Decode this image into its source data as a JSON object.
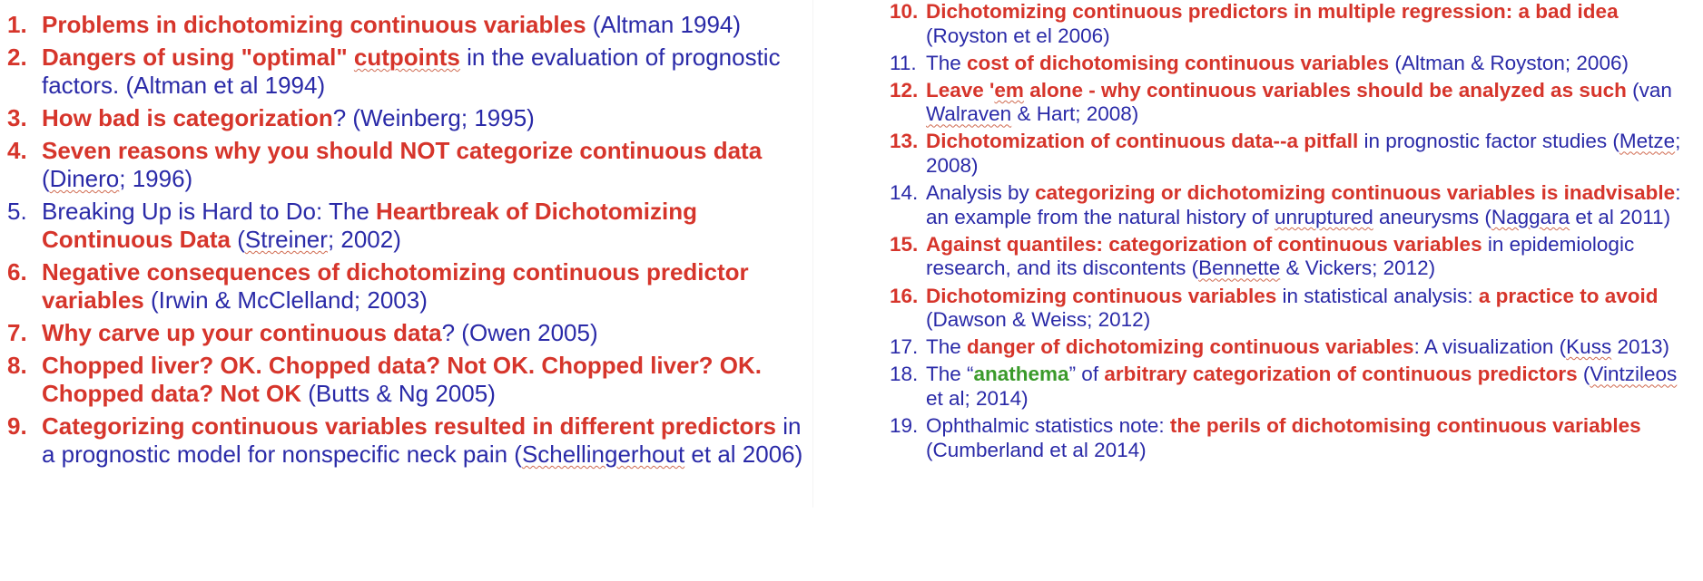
{
  "left": [
    {
      "num": "1.",
      "num_bold": true,
      "parts": [
        {
          "t": "Problems in dichotomizing continuous variables",
          "s": "b"
        },
        {
          "t": " (Altman 1994)",
          "s": "n"
        }
      ]
    },
    {
      "num": "2.",
      "num_bold": true,
      "parts": [
        {
          "t": "Dangers of using \"optimal\" ",
          "s": "b"
        },
        {
          "t": "cutpoints",
          "s": "b sp"
        },
        {
          "t": " in the evaluation of prognostic factors. (Altman et al 1994)",
          "s": "n"
        }
      ]
    },
    {
      "num": "3.",
      "num_bold": true,
      "parts": [
        {
          "t": "How bad is categorization",
          "s": "b"
        },
        {
          "t": "? (Weinberg; 1995)",
          "s": "n"
        }
      ]
    },
    {
      "num": "4.",
      "num_bold": true,
      "parts": [
        {
          "t": "Seven reasons why you should NOT categorize continuous data",
          "s": "b"
        },
        {
          "t": " (",
          "s": "n"
        },
        {
          "t": "Dinero",
          "s": "n sp"
        },
        {
          "t": "; 1996)",
          "s": "n"
        }
      ]
    },
    {
      "num": "5.",
      "num_bold": false,
      "parts": [
        {
          "t": "Breaking Up is Hard to Do: The ",
          "s": "n"
        },
        {
          "t": "Heartbreak of Dichotomizing Continuous Data",
          "s": "b"
        },
        {
          "t": " (",
          "s": "n"
        },
        {
          "t": "Streiner",
          "s": "n sp"
        },
        {
          "t": "; 2002)",
          "s": "n"
        }
      ]
    },
    {
      "num": "6.",
      "num_bold": true,
      "parts": [
        {
          "t": "Negative consequences of dichotomizing continuous predictor variables",
          "s": "b"
        },
        {
          "t": " (Irwin & McClelland; 2003)",
          "s": "n"
        }
      ]
    },
    {
      "num": "7.",
      "num_bold": true,
      "parts": [
        {
          "t": "Why carve up your continuous data",
          "s": "b"
        },
        {
          "t": "?  (Owen 2005)",
          "s": "n"
        }
      ]
    },
    {
      "num": "8.",
      "num_bold": true,
      "parts": [
        {
          "t": "Chopped liver? OK. Chopped data? Not OK. Chopped liver? OK. Chopped data? Not OK",
          "s": "b"
        },
        {
          "t": " (Butts & Ng 2005)",
          "s": "n"
        }
      ]
    },
    {
      "num": "9.",
      "num_bold": true,
      "parts": [
        {
          "t": "Categorizing continuous variables resulted in different predictors",
          "s": "b"
        },
        {
          "t": " in a prognostic model for nonspecific neck pain (",
          "s": "n"
        },
        {
          "t": "Schellingerhout",
          "s": "n sp"
        },
        {
          "t": " et al 2006)",
          "s": "n"
        }
      ]
    }
  ],
  "right": [
    {
      "num": "10.",
      "num_bold": true,
      "parts": [
        {
          "t": "Dichotomizing continuous predictors in multiple regression: a bad idea",
          "s": "b"
        },
        {
          "t": " (Royston et el 2006)",
          "s": "n"
        }
      ]
    },
    {
      "num": "11.",
      "num_bold": false,
      "parts": [
        {
          "t": "The ",
          "s": "n"
        },
        {
          "t": "cost of dichotomising continuous variables",
          "s": "b"
        },
        {
          "t": " (Altman & Royston; 2006)",
          "s": "n"
        }
      ]
    },
    {
      "num": "12.",
      "num_bold": true,
      "parts": [
        {
          "t": "Leave '",
          "s": "b"
        },
        {
          "t": "em",
          "s": "b sp"
        },
        {
          "t": " alone - why continuous variables should be analyzed as such",
          "s": "b"
        },
        {
          "t": " (van ",
          "s": "n"
        },
        {
          "t": "Walraven",
          "s": "n sp"
        },
        {
          "t": " & Hart; 2008)",
          "s": "n"
        }
      ]
    },
    {
      "num": "13.",
      "num_bold": true,
      "parts": [
        {
          "t": "Dichotomization of continuous data--a pitfall",
          "s": "b"
        },
        {
          "t": " in prognostic factor studies (",
          "s": "n"
        },
        {
          "t": "Metze",
          "s": "n sp"
        },
        {
          "t": "; 2008)",
          "s": "n"
        }
      ]
    },
    {
      "num": "14.",
      "num_bold": false,
      "parts": [
        {
          "t": "Analysis by ",
          "s": "n"
        },
        {
          "t": "categorizing or dichotomizing continuous variables is inadvisable",
          "s": "b"
        },
        {
          "t": ": an example from the natural history of ",
          "s": "n"
        },
        {
          "t": "unruptured",
          "s": "n sp"
        },
        {
          "t": " aneurysms (",
          "s": "n"
        },
        {
          "t": "Naggara",
          "s": "n sp"
        },
        {
          "t": " et al 2011)",
          "s": "n"
        }
      ]
    },
    {
      "num": "15.",
      "num_bold": true,
      "parts": [
        {
          "t": "Against quantiles: categorization of continuous variables",
          "s": "b"
        },
        {
          "t": " in epidemiologic research, and its discontents (",
          "s": "n"
        },
        {
          "t": "Bennette",
          "s": "n sp"
        },
        {
          "t": " & Vickers; 2012)",
          "s": "n"
        }
      ]
    },
    {
      "num": "16.",
      "num_bold": true,
      "parts": [
        {
          "t": "Dichotomizing continuous variables",
          "s": "b"
        },
        {
          "t": " in statistical analysis: ",
          "s": "n"
        },
        {
          "t": "a practice to avoid",
          "s": "b"
        },
        {
          "t": " (Dawson & Weiss; 2012)",
          "s": "n"
        }
      ]
    },
    {
      "num": "17.",
      "num_bold": false,
      "parts": [
        {
          "t": "The ",
          "s": "n"
        },
        {
          "t": "danger of dichotomizing continuous variables",
          "s": "b"
        },
        {
          "t": ": A visualization (",
          "s": "n"
        },
        {
          "t": "Kuss",
          "s": "n sp"
        },
        {
          "t": " 2013)",
          "s": "n"
        }
      ]
    },
    {
      "num": "18.",
      "num_bold": false,
      "parts": [
        {
          "t": "The “",
          "s": "n"
        },
        {
          "t": "anathema",
          "s": "g"
        },
        {
          "t": "” of ",
          "s": "n"
        },
        {
          "t": "arbitrary categorization of continuous predictors",
          "s": "b"
        },
        {
          "t": " (",
          "s": "n"
        },
        {
          "t": "Vintzileos",
          "s": "n sp"
        },
        {
          "t": " et al; 2014)",
          "s": "n"
        }
      ]
    },
    {
      "num": "19.",
      "num_bold": false,
      "parts": [
        {
          "t": "Ophthalmic statistics note: ",
          "s": "n"
        },
        {
          "t": "the perils of dichotomising continuous variables",
          "s": "b"
        },
        {
          "t": " (Cumberland et al 2014)",
          "s": "n"
        }
      ]
    }
  ],
  "colors": {
    "red": "#d6352b",
    "blue": "#2a2aa8",
    "green": "#3a9a2a"
  }
}
